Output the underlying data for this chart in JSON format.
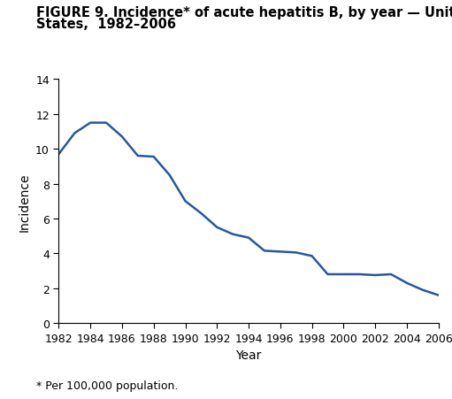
{
  "title_line1": "FIGURE 9. Incidence* of acute hepatitis B, by year — United",
  "title_line2": "States,  1982–2006",
  "xlabel": "Year",
  "ylabel": "Incidence",
  "footnote": "* Per 100,000 population.",
  "line_color": "#2457a8",
  "line_width": 1.8,
  "years": [
    1982,
    1983,
    1984,
    1985,
    1986,
    1987,
    1988,
    1989,
    1990,
    1991,
    1992,
    1993,
    1994,
    1995,
    1996,
    1997,
    1998,
    1999,
    2000,
    2001,
    2002,
    2003,
    2004,
    2005,
    2006
  ],
  "values": [
    9.7,
    10.9,
    11.5,
    11.5,
    10.7,
    9.6,
    9.55,
    8.5,
    7.0,
    6.3,
    5.5,
    5.1,
    4.9,
    4.15,
    4.1,
    4.05,
    3.85,
    2.8,
    2.8,
    2.8,
    2.75,
    2.8,
    2.3,
    1.9,
    1.6
  ],
  "xlim": [
    1982,
    2006
  ],
  "ylim": [
    0,
    14
  ],
  "yticks": [
    0,
    2,
    4,
    6,
    8,
    10,
    12,
    14
  ],
  "xticks": [
    1982,
    1984,
    1986,
    1988,
    1990,
    1992,
    1994,
    1996,
    1998,
    2000,
    2002,
    2004,
    2006
  ],
  "background_color": "#ffffff",
  "title_fontsize": 10.5,
  "axis_label_fontsize": 10,
  "tick_fontsize": 9,
  "footnote_fontsize": 9
}
